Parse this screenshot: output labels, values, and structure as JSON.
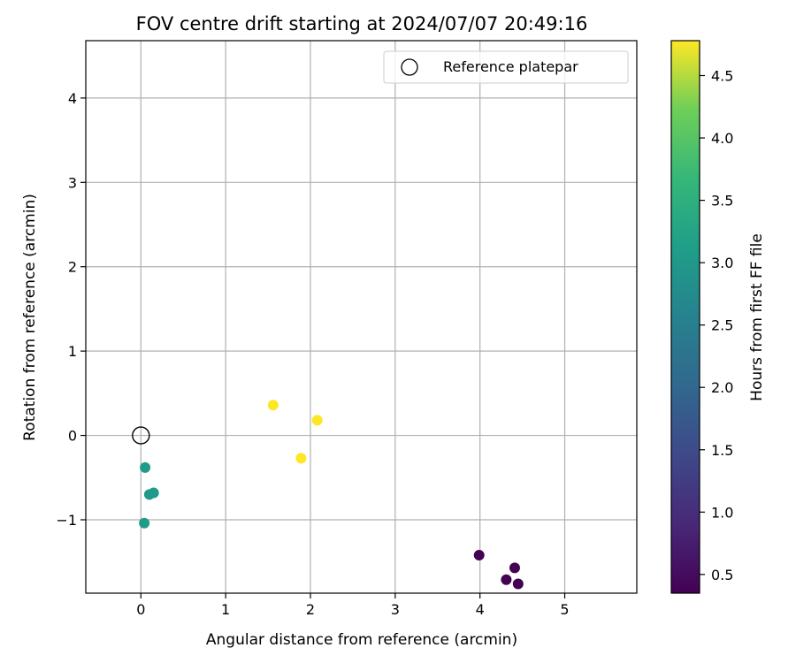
{
  "chart_data": {
    "type": "scatter",
    "title": "FOV centre drift starting at 2024/07/07 20:49:16",
    "xlabel": "Angular distance from reference (arcmin)",
    "ylabel": "Rotation from reference (arcmin)",
    "xlim": [
      -0.65,
      5.85
    ],
    "ylim": [
      -1.87,
      4.68
    ],
    "xticks": [
      0,
      1,
      2,
      3,
      4,
      5
    ],
    "yticks": [
      -1,
      0,
      1,
      2,
      3,
      4
    ],
    "xtick_labels": [
      "0",
      "1",
      "2",
      "3",
      "4",
      "5"
    ],
    "ytick_labels": [
      "−1",
      "0",
      "1",
      "2",
      "3",
      "4"
    ],
    "grid": true,
    "legend": {
      "position": "top-right",
      "entries": [
        "Reference platepar"
      ]
    },
    "reference": {
      "x": 0,
      "y": 0
    },
    "colorbar": {
      "label": "Hours from first FF file",
      "range": [
        0.35,
        4.78
      ],
      "ticks": [
        0.5,
        1.0,
        1.5,
        2.0,
        2.5,
        3.0,
        3.5,
        4.0,
        4.5
      ],
      "tick_labels": [
        "0.5",
        "1.0",
        "1.5",
        "2.0",
        "2.5",
        "3.0",
        "3.5",
        "4.0",
        "4.5"
      ],
      "colormap": "viridis"
    },
    "points": [
      {
        "x": 3.99,
        "y": -1.42,
        "hours": 0.35
      },
      {
        "x": 4.41,
        "y": -1.57,
        "hours": 0.35
      },
      {
        "x": 4.31,
        "y": -1.71,
        "hours": 0.35
      },
      {
        "x": 4.45,
        "y": -1.76,
        "hours": 0.35
      },
      {
        "x": 0.05,
        "y": -0.38,
        "hours": 3.05
      },
      {
        "x": 0.1,
        "y": -0.7,
        "hours": 3.05
      },
      {
        "x": 0.15,
        "y": -0.68,
        "hours": 3.05
      },
      {
        "x": 0.04,
        "y": -1.04,
        "hours": 3.05
      },
      {
        "x": 1.56,
        "y": 0.36,
        "hours": 4.78
      },
      {
        "x": 2.08,
        "y": 0.18,
        "hours": 4.78
      },
      {
        "x": 1.89,
        "y": -0.27,
        "hours": 4.78
      }
    ]
  }
}
